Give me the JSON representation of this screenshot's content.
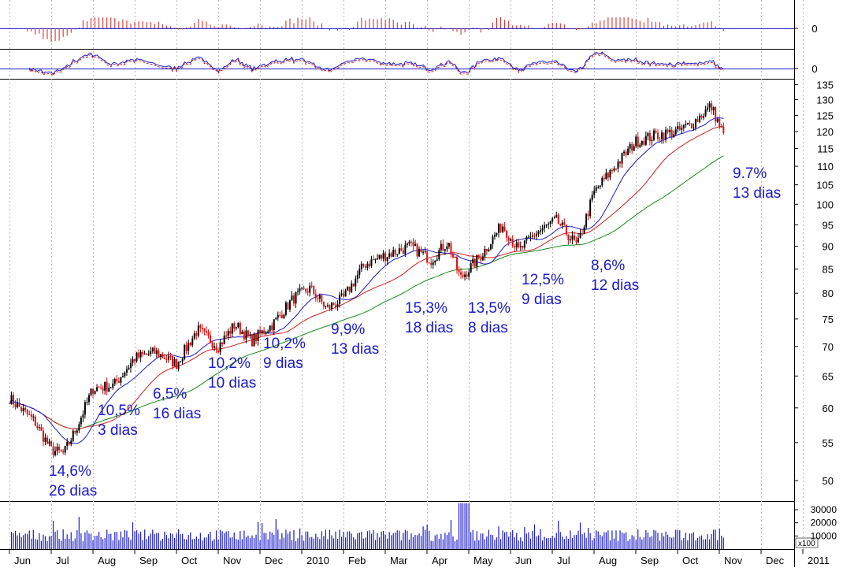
{
  "chart_data": {
    "type": "candlestick",
    "price_axis": {
      "ticks": [
        50,
        55,
        60,
        65,
        70,
        75,
        80,
        85,
        90,
        95,
        100,
        105,
        110,
        115,
        120,
        125,
        130,
        135
      ],
      "labels": [
        "50",
        "55",
        "60",
        "65",
        "70",
        "75",
        "80",
        "85",
        "90",
        "95",
        "100",
        "105",
        "110",
        "115",
        "120",
        "125",
        "130",
        "135"
      ],
      "log_scale": true,
      "range": [
        47.5,
        137
      ]
    },
    "indicator_panels": [
      {
        "zero_label": "0"
      },
      {
        "zero_label": "0"
      }
    ],
    "volume_axis": {
      "ticks": [
        10000,
        20000,
        30000
      ],
      "labels": [
        "10000",
        "20000",
        "30000"
      ],
      "multiplier_label": "x100",
      "max": 36000
    },
    "x_axis": {
      "labels": [
        "Jun",
        "Jul",
        "Aug",
        "Sep",
        "Oct",
        "Nov",
        "Dec",
        "2010",
        "Feb",
        "Mar",
        "Apr",
        "May",
        "Jun",
        "Jul",
        "Aug",
        "Sep",
        "Oct",
        "Nov",
        "Dec",
        "2011"
      ]
    },
    "price_path": [
      {
        "m": 0,
        "p": 61.5
      },
      {
        "m": 0.6,
        "p": 58
      },
      {
        "m": 1.0,
        "p": 54
      },
      {
        "m": 1.3,
        "p": 53.5
      },
      {
        "m": 1.6,
        "p": 57
      },
      {
        "m": 2.0,
        "p": 63
      },
      {
        "m": 2.5,
        "p": 63.5
      },
      {
        "m": 3.0,
        "p": 68
      },
      {
        "m": 3.5,
        "p": 69
      },
      {
        "m": 4.0,
        "p": 67
      },
      {
        "m": 4.5,
        "p": 73
      },
      {
        "m": 5.0,
        "p": 70
      },
      {
        "m": 5.4,
        "p": 74
      },
      {
        "m": 5.8,
        "p": 71
      },
      {
        "m": 6.3,
        "p": 74
      },
      {
        "m": 6.8,
        "p": 79
      },
      {
        "m": 7.2,
        "p": 81
      },
      {
        "m": 7.6,
        "p": 77
      },
      {
        "m": 8.0,
        "p": 79
      },
      {
        "m": 8.5,
        "p": 86
      },
      {
        "m": 9.0,
        "p": 88
      },
      {
        "m": 9.6,
        "p": 90
      },
      {
        "m": 10.1,
        "p": 87
      },
      {
        "m": 10.5,
        "p": 91
      },
      {
        "m": 10.8,
        "p": 83
      },
      {
        "m": 11.3,
        "p": 88
      },
      {
        "m": 11.8,
        "p": 95
      },
      {
        "m": 12.2,
        "p": 89
      },
      {
        "m": 12.6,
        "p": 93
      },
      {
        "m": 13.1,
        "p": 96
      },
      {
        "m": 13.6,
        "p": 90
      },
      {
        "m": 14.0,
        "p": 103
      },
      {
        "m": 14.5,
        "p": 110
      },
      {
        "m": 15.0,
        "p": 117
      },
      {
        "m": 15.5,
        "p": 119
      },
      {
        "m": 16.0,
        "p": 120
      },
      {
        "m": 16.4,
        "p": 123
      },
      {
        "m": 16.8,
        "p": 128
      },
      {
        "m": 17.1,
        "p": 119
      }
    ],
    "annotations": [
      {
        "pct": "14,6%",
        "days": "26 dias",
        "m": 1.1
      },
      {
        "pct": "10,5%",
        "days": "3 dias",
        "m": 2.2
      },
      {
        "pct": "6,5%",
        "days": "16 dias",
        "m": 3.5
      },
      {
        "pct": "10,2%",
        "days": "10 dias",
        "m": 4.7
      },
      {
        "pct": "10,2%",
        "days": "9 dias",
        "m": 5.8
      },
      {
        "pct": "9,9%",
        "days": "13 dias",
        "m": 7.3
      },
      {
        "pct": "15,3%",
        "days": "18 dias",
        "m": 9.0
      },
      {
        "pct": "13,5%",
        "days": "8 dias",
        "m": 10.4
      },
      {
        "pct": "12,5%",
        "days": "9 dias",
        "m": 11.6
      },
      {
        "pct": "8,6%",
        "days": "12 dias",
        "m": 13.1
      },
      {
        "pct": "9.7%",
        "days": "13 dias",
        "m": 16.3
      }
    ]
  }
}
